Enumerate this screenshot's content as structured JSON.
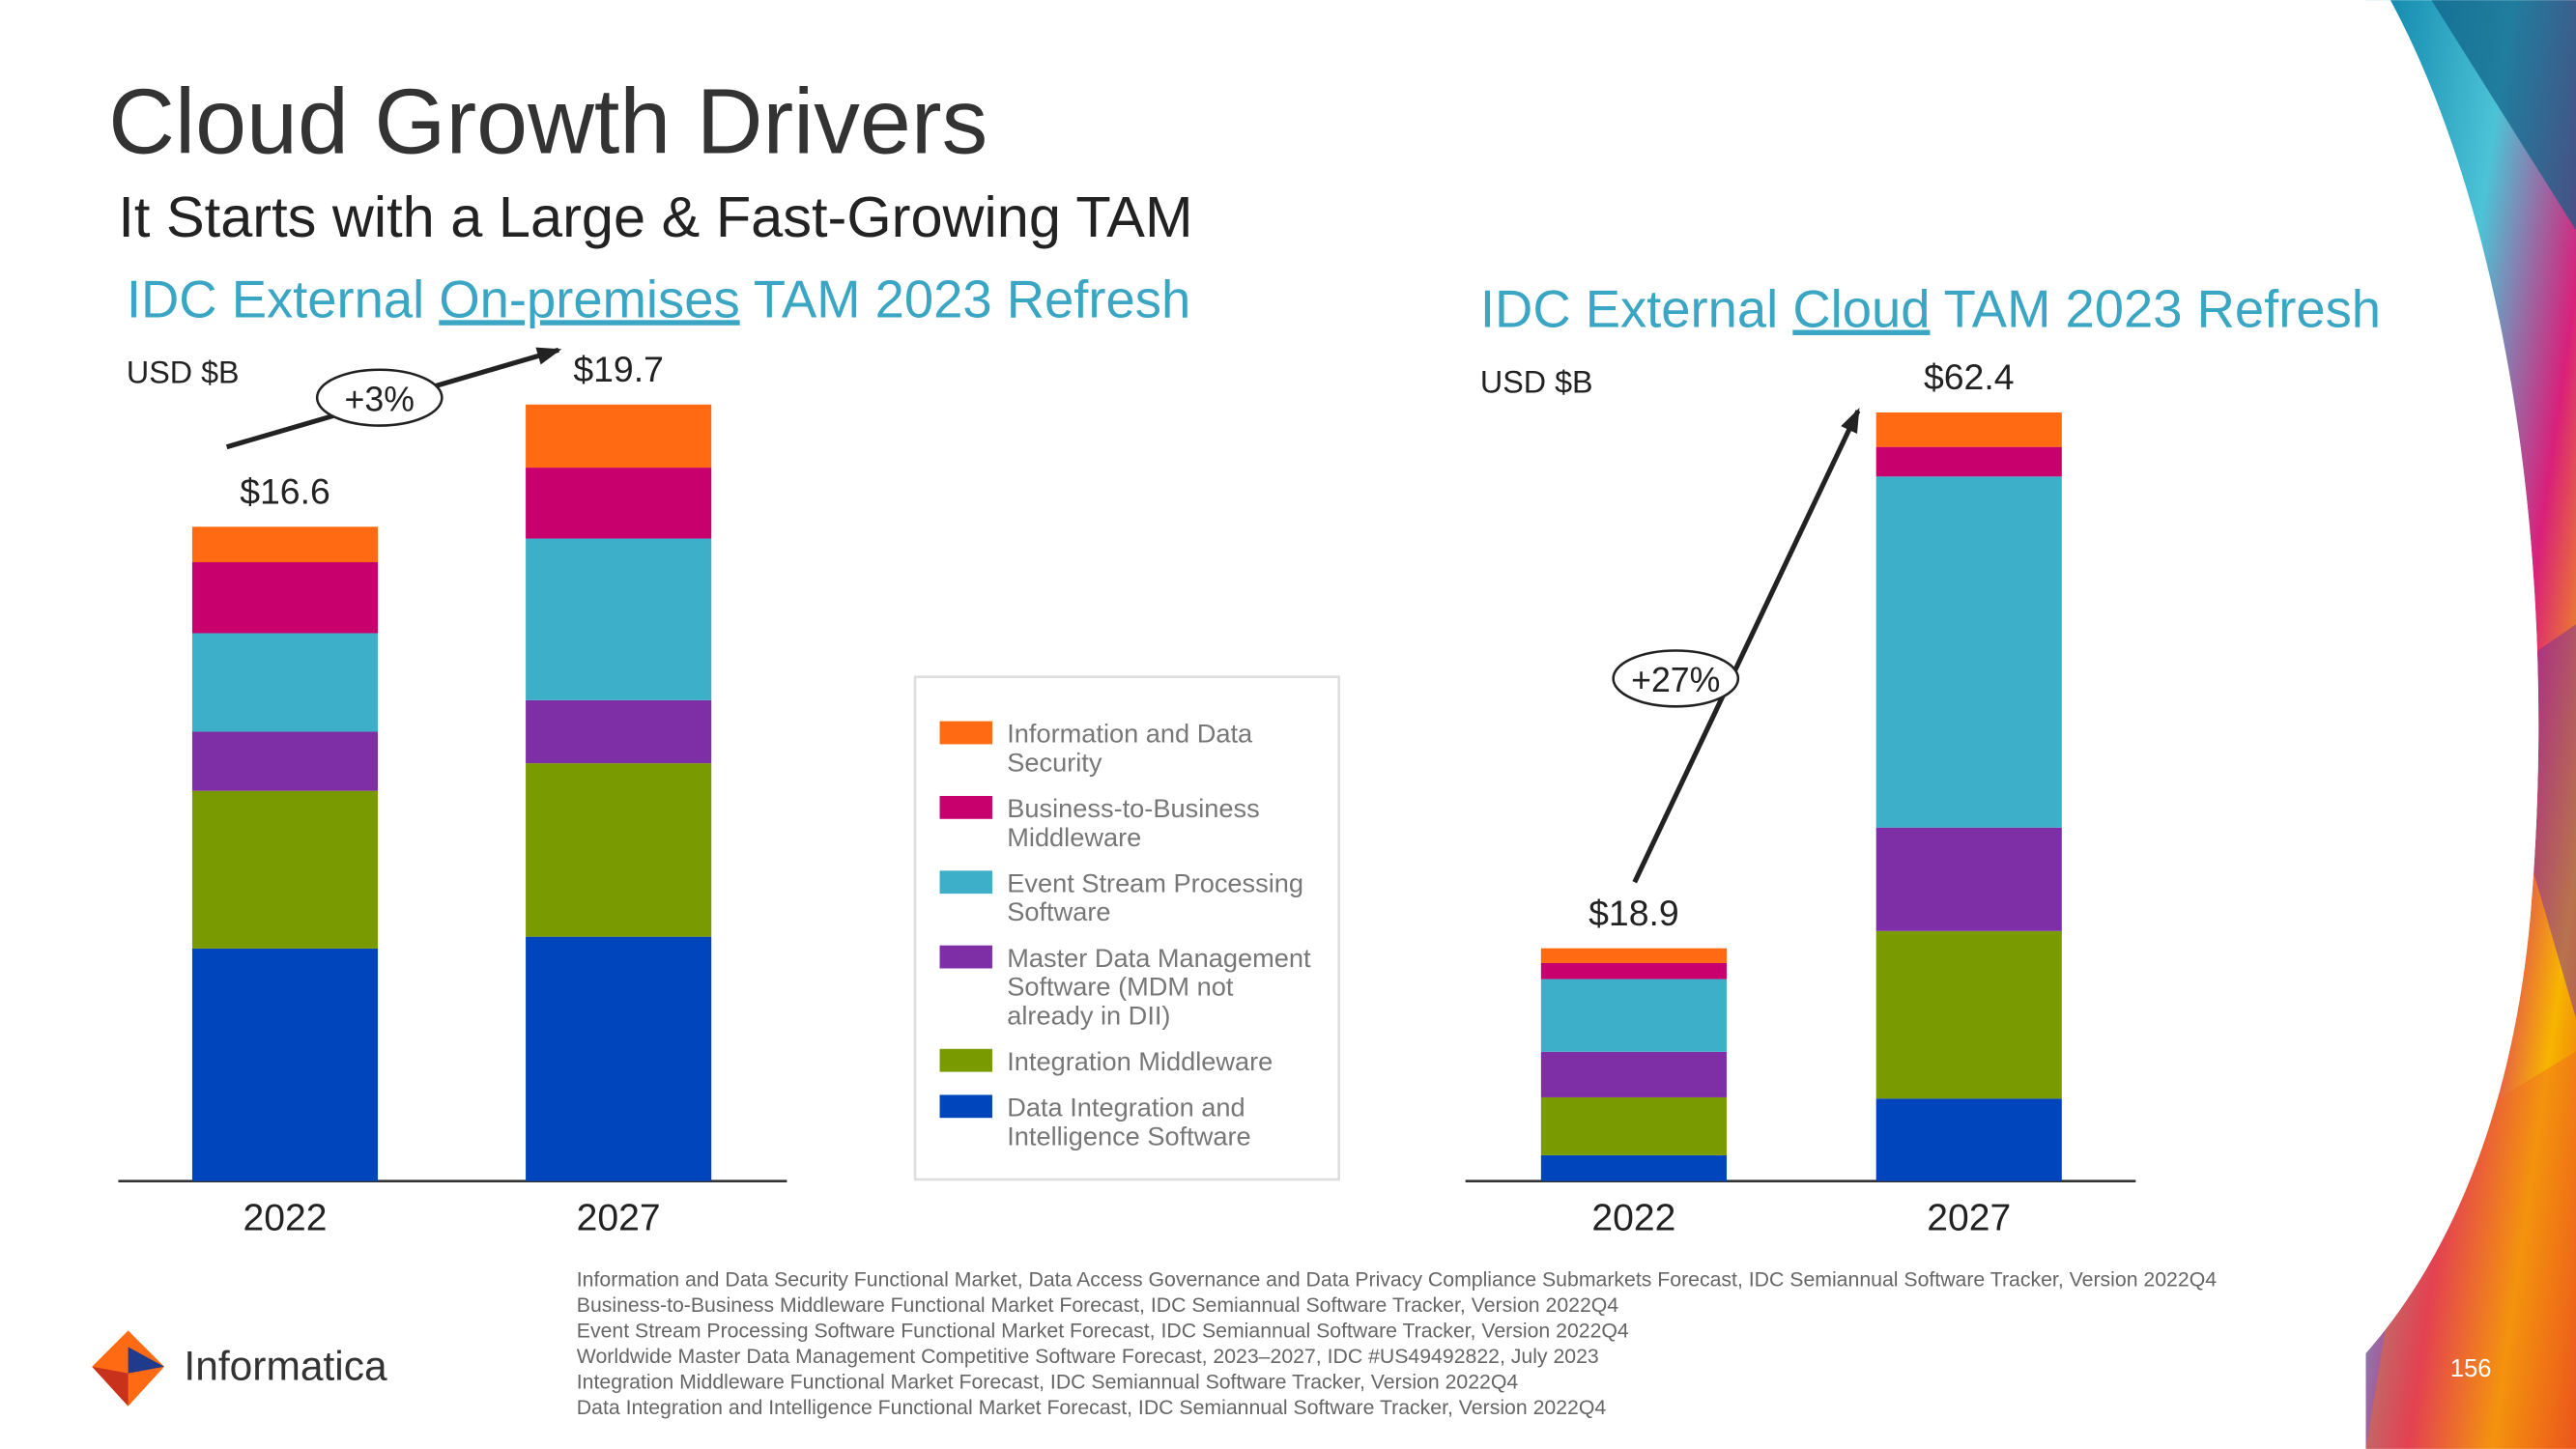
{
  "heading": "Cloud Growth Drivers",
  "subheading": "It Starts with a Large & Fast-Growing TAM",
  "chart_data": [
    {
      "type": "stacked-bar",
      "title_prefix": "IDC External ",
      "title_underlined": "On-premises",
      "title_suffix": " TAM 2023 Refresh",
      "y_label": "USD $B",
      "categories": [
        "2022",
        "2027"
      ],
      "total_labels": [
        "$16.6",
        "$19.7"
      ],
      "growth_label": "+3%",
      "ylim": [
        0,
        20
      ],
      "series": [
        {
          "name": "Data Integration and Intelligence Software",
          "color": "#0045bb",
          "values": [
            5.9,
            6.2
          ]
        },
        {
          "name": "Integration Middleware",
          "color": "#799a00",
          "values": [
            4.0,
            4.4
          ]
        },
        {
          "name": "Master Data Management Software (MDM not already in DII)",
          "color": "#7f2fa6",
          "values": [
            1.5,
            1.6
          ]
        },
        {
          "name": "Event Stream Processing Software",
          "color": "#3eafc8",
          "values": [
            2.5,
            4.1
          ]
        },
        {
          "name": "Business-to-Business Middleware",
          "color": "#c8006e",
          "values": [
            1.8,
            1.8
          ]
        },
        {
          "name": "Information and Data Security",
          "color": "#ff6a13",
          "values": [
            0.9,
            1.6
          ]
        }
      ]
    },
    {
      "type": "stacked-bar",
      "title_prefix": "IDC External ",
      "title_underlined": "Cloud",
      "title_suffix": " TAM 2023 Refresh",
      "y_label": "USD $B",
      "categories": [
        "2022",
        "2027"
      ],
      "total_labels": [
        "$18.9",
        "$62.4"
      ],
      "growth_label": "+27%",
      "ylim": [
        0,
        64
      ],
      "series": [
        {
          "color": "#0045bb",
          "values": [
            2.1,
            6.7
          ]
        },
        {
          "color": "#799a00",
          "values": [
            4.7,
            13.6
          ]
        },
        {
          "color": "#7f2fa6",
          "values": [
            3.7,
            8.4
          ]
        },
        {
          "color": "#3eafc8",
          "values": [
            5.9,
            28.5
          ]
        },
        {
          "color": "#c8006e",
          "values": [
            1.3,
            2.4
          ]
        },
        {
          "color": "#ff6a13",
          "values": [
            1.2,
            2.8
          ]
        }
      ]
    }
  ],
  "footnotes": [
    "Information and Data Security Functional Market, Data Access Governance and Data Privacy Compliance Submarkets Forecast, IDC Semiannual Software Tracker, Version 2022Q4",
    "Business-to-Business Middleware Functional Market Forecast, IDC Semiannual Software Tracker, Version 2022Q4",
    "Event Stream Processing Software Functional Market Forecast, IDC Semiannual Software Tracker, Version 2022Q4",
    "Worldwide Master Data Management Competitive Software Forecast, 2023–2027, IDC #US49492822, July 2023",
    "Integration Middleware Functional Market Forecast, IDC Semiannual Software Tracker, Version 2022Q4",
    "Data Integration and Intelligence Functional Market Forecast, IDC Semiannual Software Tracker, Version 2022Q4"
  ],
  "logo_text": "Informatica",
  "page_number": "156"
}
